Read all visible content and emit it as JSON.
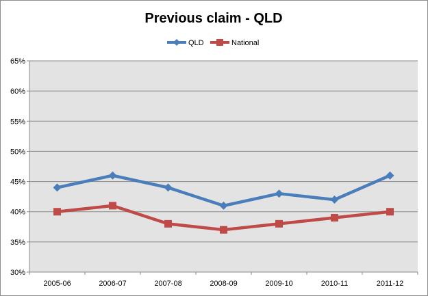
{
  "chart_data": {
    "type": "line",
    "title": "Previous claim - QLD",
    "categories": [
      "2005-06",
      "2006-07",
      "2007-08",
      "2008-09",
      "2009-10",
      "2010-11",
      "2011-12"
    ],
    "series": [
      {
        "name": "QLD",
        "values": [
          44,
          46,
          44,
          41,
          43,
          42,
          46
        ],
        "color": "#4a7ebb",
        "marker": "diamond"
      },
      {
        "name": "National",
        "values": [
          40,
          41,
          38,
          37,
          38,
          39,
          40
        ],
        "color": "#be4b48",
        "marker": "square"
      }
    ],
    "ylim": [
      30,
      65
    ],
    "yticks": [
      30,
      35,
      40,
      45,
      50,
      55,
      60,
      65
    ],
    "ytick_format": "percent",
    "grid": true,
    "plot_background": "#e3e3e3",
    "legend_position": "top"
  }
}
